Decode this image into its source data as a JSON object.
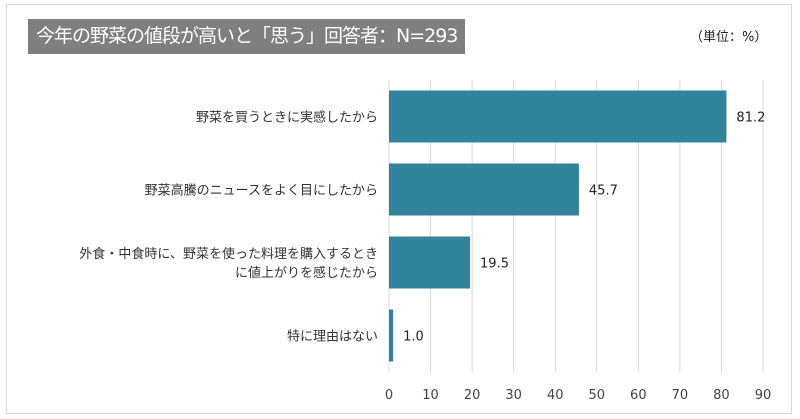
{
  "chart_data": {
    "type": "bar",
    "orientation": "horizontal",
    "title": "今年の野菜の値段が高いと「思う」回答者：N=293",
    "unit_label": "（単位：%）",
    "categories": [
      [
        "野菜を買うときに実感したから"
      ],
      [
        "野菜高騰のニュースをよく目にしたから"
      ],
      [
        "外食・中食時に、野菜を使った料理を購入するとき",
        "に値上がりを感じたから"
      ],
      [
        "特に理由はない"
      ]
    ],
    "values": [
      81.2,
      45.7,
      19.5,
      1.0
    ],
    "value_labels": [
      "81.2",
      "45.7",
      "19.5",
      "1.0"
    ],
    "xlim": [
      0,
      90
    ],
    "ticks": [
      "0",
      "10",
      "20",
      "30",
      "40",
      "50",
      "60",
      "70",
      "80",
      "90"
    ],
    "grid": true,
    "bar_color": "#31849b"
  }
}
